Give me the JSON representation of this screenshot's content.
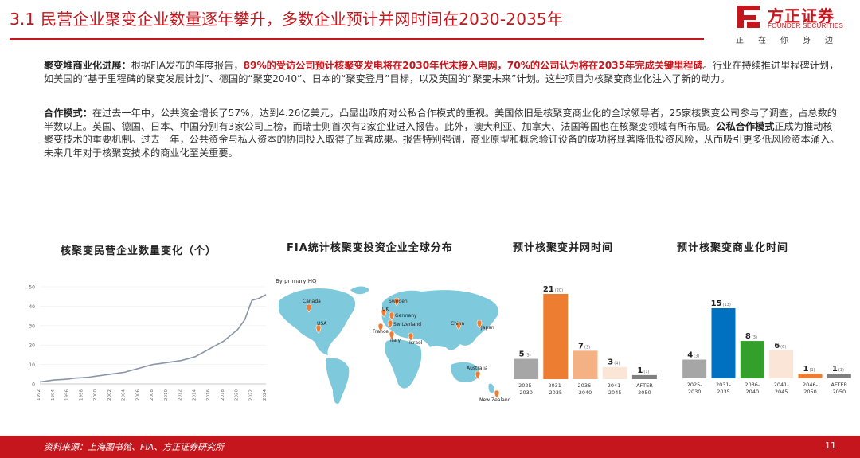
{
  "header": {
    "title": "3.1 民营企业聚变企业数量逐年攀升，多数企业预计并网时间在2030-2035年"
  },
  "logo": {
    "name_cn": "方正证券",
    "name_en": "FOUNDER SECURITIES",
    "slogan": "正在你身边",
    "brand_color": "#c4161c"
  },
  "paragraph1": {
    "label": "聚变堆商业化进展：",
    "intro": "根据FIA发布的年度报告，",
    "highlight": "89%的受访公司预计核聚变发电将在2030年代末接入电网，70%的公司认为将在2035年完成关键里程碑",
    "rest": "。行业在持续推进里程碑计划，如美国的“基于里程碑的聚变发展计划”、德国的“聚变2040”、日本的“聚变登月”目标，以及英国的“聚变未来”计划。这些项目为核聚变商业化注入了新的动力。"
  },
  "paragraph2": {
    "label": "合作模式：",
    "text1": "在过去一年中，公共资金增长了57%，达到4.26亿美元，凸显出政府对公私合作模式的重视。美国依旧是核聚变商业化的全球领导者，25家核聚变公司参与了调查，占总数的半数以上。英国、德国、日本、中国分别有3家公司上榜，而瑞士则首次有2家企业进入报告。此外，澳大利亚、加拿大、法国等国也在核聚变领域有所布局。",
    "bold": "公私合作模式",
    "text2": "正成为推动核聚变技术的重要机制。过去一年，公共资金与私人资本的协同投入取得了显著成果。报告特别强调，商业原型和概念验证设备的成功将显著降低投资风险，从而吸引更多低风险资本涌入。未来几年对于核聚变技术的商业化至关重要。"
  },
  "chart_titles": {
    "line": "核聚变民营企业数量变化（个）",
    "map": "FIA统计核聚变投资企业全球分布",
    "grid": "预计核聚变并网时间",
    "commercial": "预计核聚变商业化时间"
  },
  "map": {
    "subtitle": "By primary HQ",
    "countries": [
      "Canada",
      "USA",
      "UK",
      "Sweden",
      "Germany",
      "Switzerland",
      "France",
      "Italy",
      "Israel",
      "China",
      "Japan",
      "Australia",
      "New Zealand"
    ]
  },
  "chart_data": [
    {
      "type": "line",
      "title": "核聚变民营企业数量变化（个）",
      "x": [
        "1992",
        "1993",
        "1994",
        "1995",
        "1996",
        "1997",
        "1998",
        "1999",
        "2000",
        "2001",
        "2002",
        "2003",
        "2004",
        "2005",
        "2006",
        "2007",
        "2008",
        "2009",
        "2010",
        "2011",
        "2012",
        "2013",
        "2014",
        "2015",
        "2016",
        "2017",
        "2018",
        "2019",
        "2020",
        "2021",
        "2022",
        "2023",
        "2024"
      ],
      "series": [
        {
          "values": [
            1,
            1.5,
            2,
            2.2,
            2.5,
            3,
            3.2,
            3.5,
            4,
            4.5,
            5,
            5.5,
            6,
            7,
            8,
            9,
            10,
            10.5,
            11,
            11.5,
            12,
            13,
            14,
            16,
            18,
            20,
            22,
            25,
            28,
            33,
            43,
            44,
            46
          ]
        }
      ],
      "x_tick_labels": [
        "1992",
        "1994",
        "1996",
        "1998",
        "2000",
        "2002",
        "2004",
        "2006",
        "2008",
        "2010",
        "2012",
        "2014",
        "2016",
        "2018",
        "2020",
        "2022",
        "2024"
      ],
      "y_ticks": [
        0,
        10,
        20,
        30,
        40,
        50
      ],
      "ylim": [
        0,
        50
      ],
      "line_color": "#8896a8"
    },
    {
      "type": "bar",
      "title": "预计核聚变并网时间",
      "categories": [
        [
          "2025-",
          "2030"
        ],
        [
          "2031-",
          "2035"
        ],
        [
          "2036-",
          "2040"
        ],
        [
          "2041-",
          "2045"
        ],
        [
          "AFTER",
          "2050"
        ]
      ],
      "values": [
        5,
        21,
        7,
        3,
        1
      ],
      "secondary_labels": [
        "(3)",
        "(20)",
        "(3)",
        "(4)",
        "(1)"
      ],
      "colors": [
        "#a6a6a6",
        "#ed7d31",
        "#f4b183",
        "#fbe5d6",
        "#7f7f7f"
      ]
    },
    {
      "type": "bar",
      "title": "预计核聚变商业化时间",
      "categories": [
        [
          "2025-",
          "2030"
        ],
        [
          "2031-",
          "2035"
        ],
        [
          "2036-",
          "2040"
        ],
        [
          "2041-",
          "2045"
        ],
        [
          "2046-",
          "2050"
        ],
        [
          "AFTER",
          "2050"
        ]
      ],
      "values": [
        4,
        15,
        8,
        6,
        1,
        1
      ],
      "secondary_labels": [
        "(3)",
        "(13)",
        "(3)",
        "(6)",
        "(1)",
        "(1)"
      ],
      "colors": [
        "#a6a6a6",
        "#0070c0",
        "#33a02c",
        "#fbe5d6",
        "#ed7d31",
        "#7f7f7f"
      ]
    }
  ],
  "footer": {
    "source": "资料来源：上海图书馆、FIA、方正证券研究所",
    "page": "11"
  }
}
